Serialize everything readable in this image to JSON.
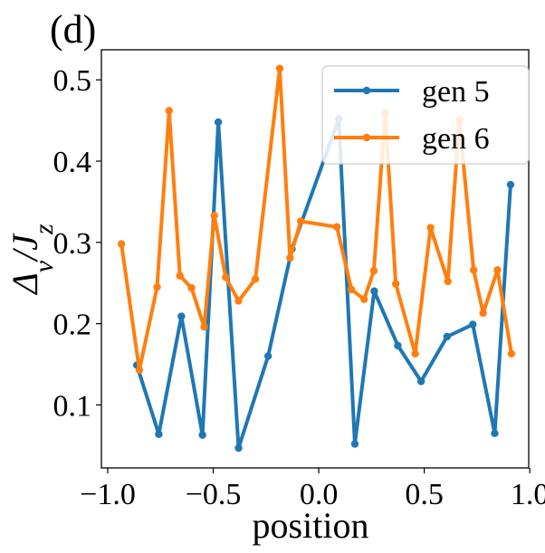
{
  "chart_data": {
    "type": "line",
    "panel_label": "(d)",
    "xlabel": "position",
    "ylabel": "Δ_v/J_z",
    "xlim": [
      -1.03,
      0.995
    ],
    "ylim": [
      0.0225,
      0.537
    ],
    "x_ticks": [
      {
        "value": -1.0,
        "label": "−1.0"
      },
      {
        "value": -0.5,
        "label": "−0.5"
      },
      {
        "value": 0.0,
        "label": "0.0"
      },
      {
        "value": 0.5,
        "label": "0.5"
      },
      {
        "value": 1.0,
        "label": "1.0"
      }
    ],
    "y_ticks": [
      {
        "value": 0.1,
        "label": "0.1"
      },
      {
        "value": 0.2,
        "label": "0.2"
      },
      {
        "value": 0.3,
        "label": "0.3"
      },
      {
        "value": 0.4,
        "label": "0.4"
      },
      {
        "value": 0.5,
        "label": "0.5"
      }
    ],
    "legend_position": "top-right",
    "series": [
      {
        "name": "gen 5",
        "color": "#1f77b4",
        "x": [
          -0.862,
          -0.758,
          -0.651,
          -0.551,
          -0.476,
          -0.38,
          -0.24,
          -0.127,
          0.095,
          0.171,
          0.263,
          0.375,
          0.485,
          0.608,
          0.73,
          0.834,
          0.909
        ],
        "y": [
          0.149,
          0.064,
          0.209,
          0.063,
          0.448,
          0.047,
          0.16,
          0.292,
          0.452,
          0.052,
          0.24,
          0.173,
          0.129,
          0.184,
          0.199,
          0.065,
          0.371
        ]
      },
      {
        "name": "gen 6",
        "color": "#ff7f0e",
        "x": [
          -0.935,
          -0.85,
          -0.766,
          -0.709,
          -0.658,
          -0.603,
          -0.543,
          -0.495,
          -0.441,
          -0.38,
          -0.3,
          -0.185,
          -0.136,
          -0.085,
          0.086,
          0.155,
          0.215,
          0.261,
          0.315,
          0.365,
          0.457,
          0.53,
          0.612,
          0.666,
          0.734,
          0.779,
          0.847,
          0.913
        ],
        "y": [
          0.298,
          0.143,
          0.245,
          0.462,
          0.259,
          0.244,
          0.196,
          0.333,
          0.257,
          0.228,
          0.255,
          0.514,
          0.281,
          0.326,
          0.319,
          0.242,
          0.23,
          0.265,
          0.459,
          0.249,
          0.163,
          0.318,
          0.252,
          0.451,
          0.266,
          0.213,
          0.266,
          0.163
        ]
      }
    ]
  }
}
